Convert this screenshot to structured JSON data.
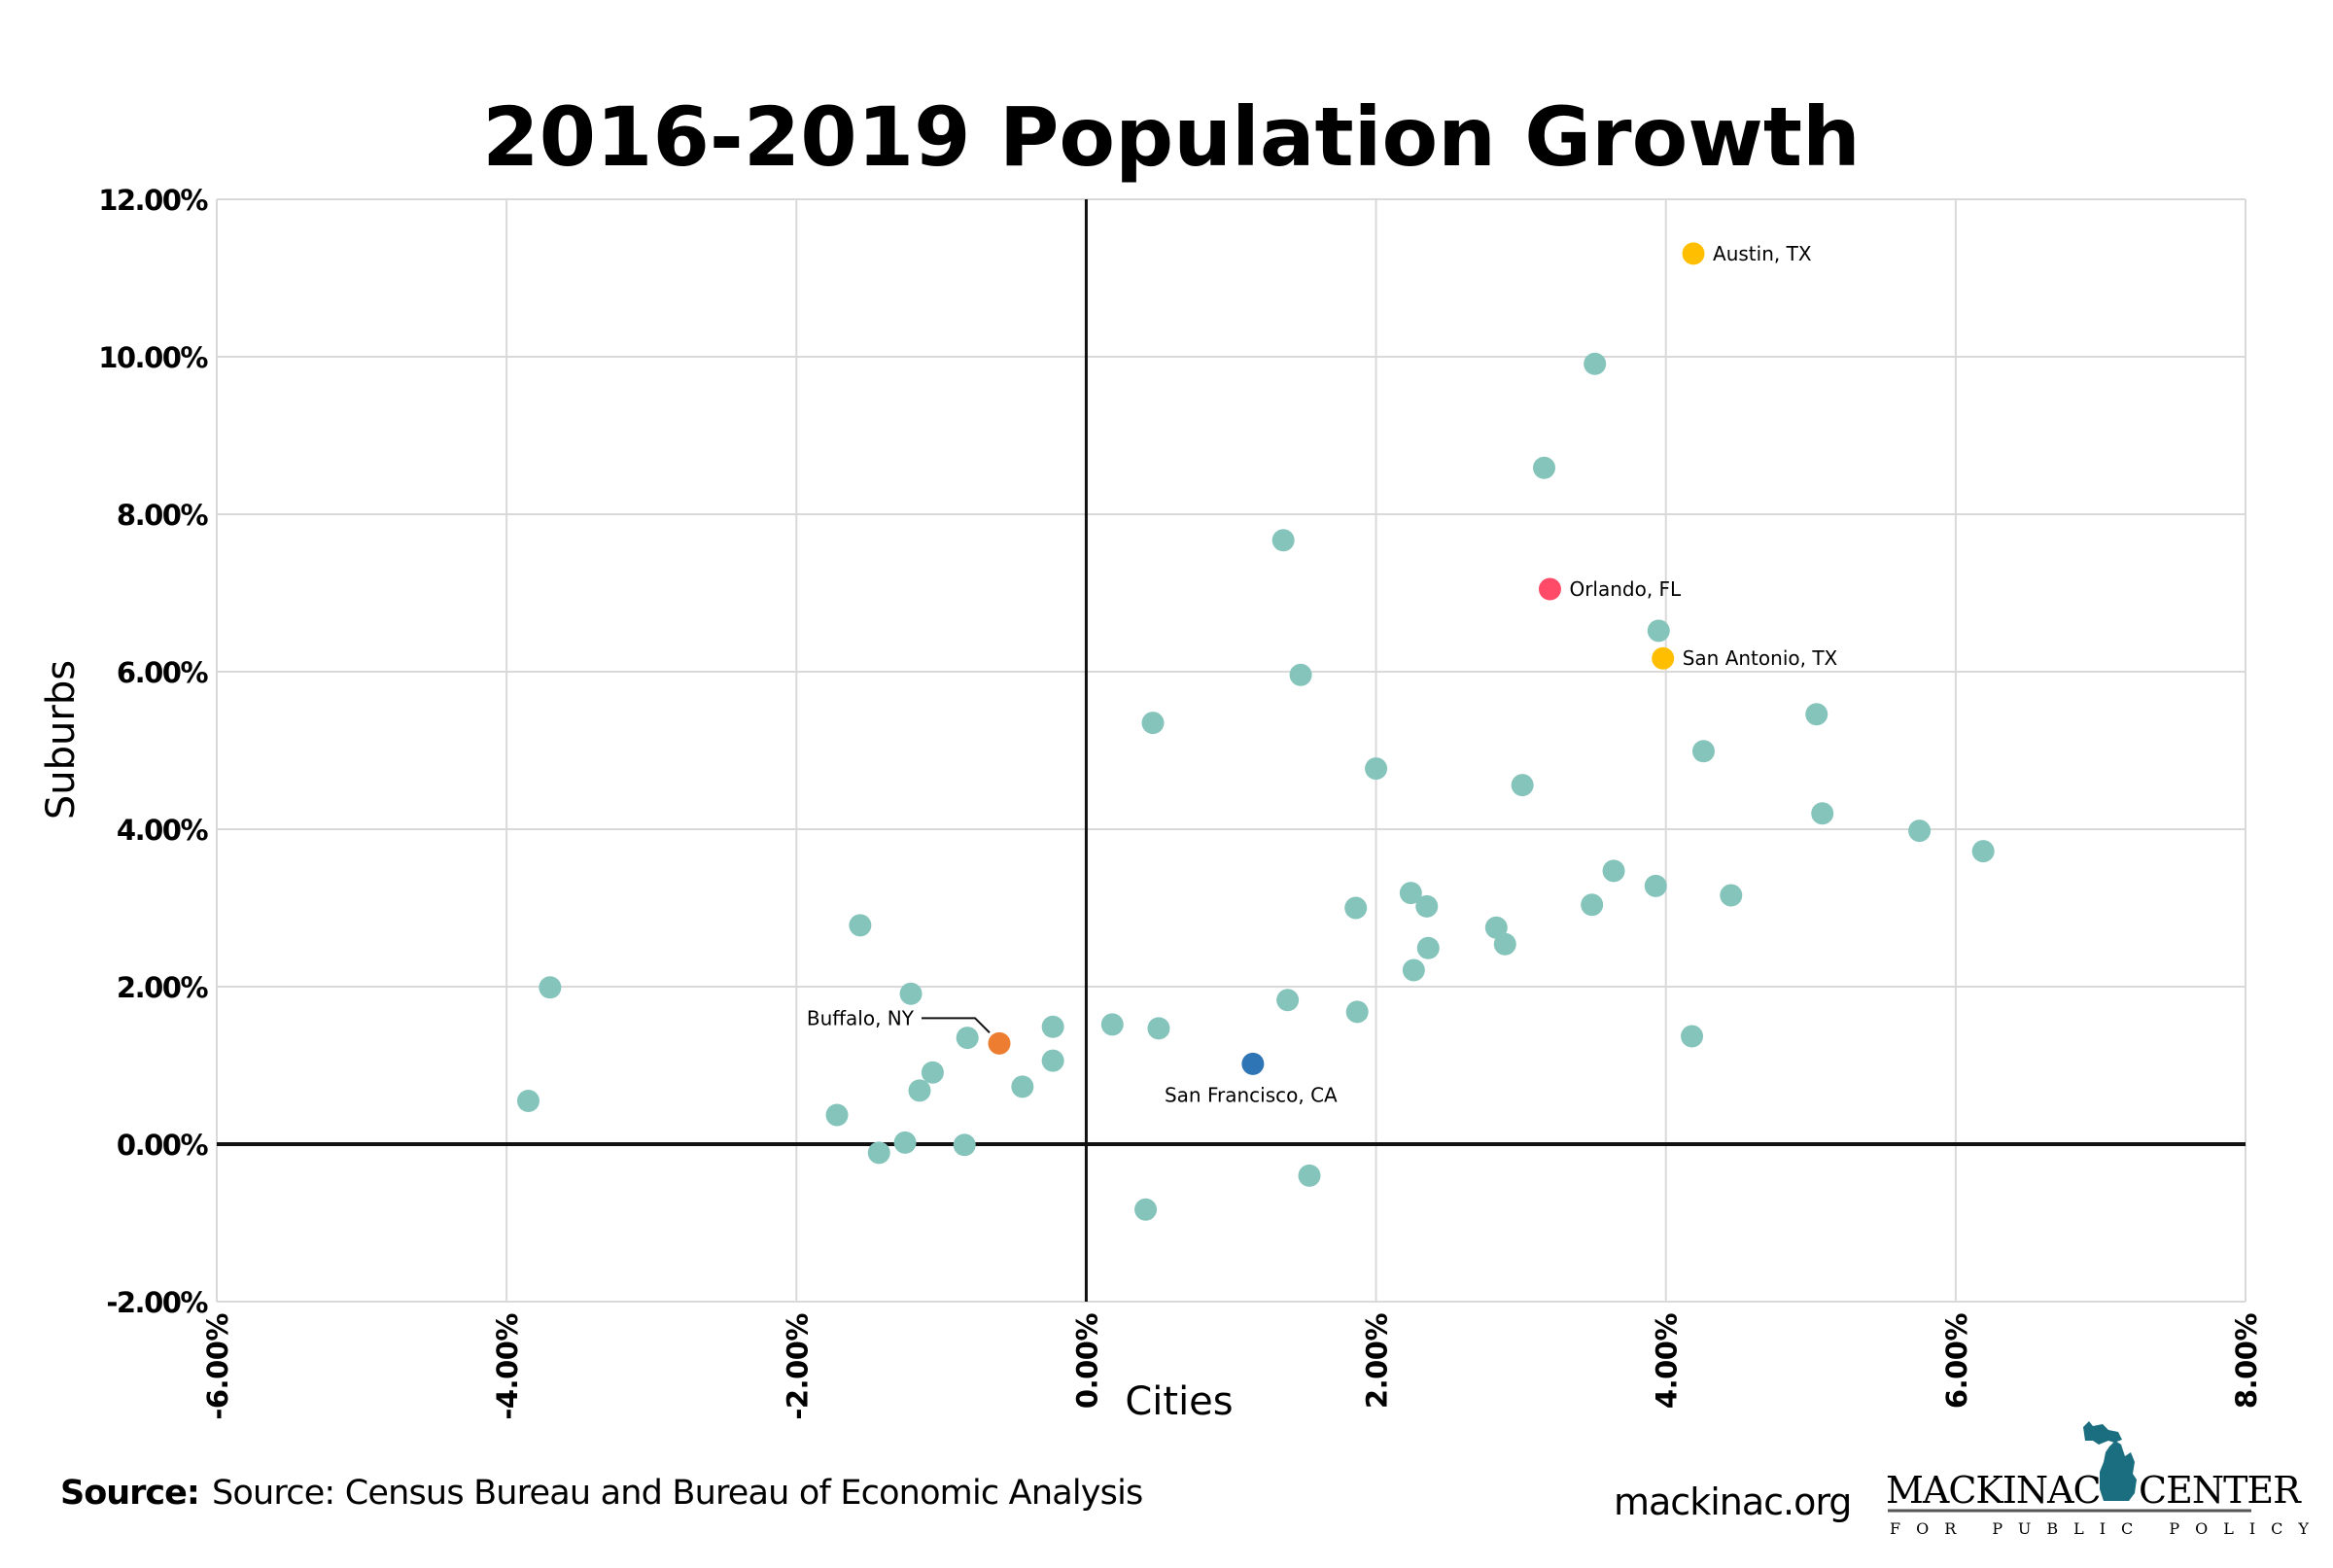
{
  "chart_data": {
    "type": "scatter",
    "title": "2016-2019 Population Growth",
    "xlabel": "Cities",
    "ylabel": "Suburbs",
    "xlim": [
      -6,
      8
    ],
    "ylim": [
      -2,
      12
    ],
    "x_ticks": [
      -6,
      -4,
      -2,
      0,
      2,
      4,
      6,
      8
    ],
    "y_ticks": [
      -2,
      0,
      2,
      4,
      6,
      8,
      10,
      12
    ],
    "x_tick_labels": [
      "-6.00%",
      "-4.00%",
      "-2.00%",
      "0.00%",
      "2.00%",
      "4.00%",
      "6.00%",
      "8.00%"
    ],
    "y_tick_labels": [
      "-2.00%",
      "0.00%",
      "2.00%",
      "4.00%",
      "6.00%",
      "8.00%",
      "10.00%",
      "12.00%"
    ],
    "unit": "percent",
    "grid": true,
    "default_color": "#85c4bb",
    "points": [
      {
        "x": 4.19,
        "y": 11.31,
        "label": "Austin, TX",
        "color": "#ffbf00",
        "label_pos": "right"
      },
      {
        "x": 3.2,
        "y": 7.05,
        "label": "Orlando, FL",
        "color": "#ff4a68",
        "label_pos": "right"
      },
      {
        "x": 3.98,
        "y": 6.17,
        "label": "San Antonio, TX",
        "color": "#ffbf00",
        "label_pos": "right"
      },
      {
        "x": 1.15,
        "y": 1.02,
        "label": "San Francisco, CA",
        "color": "#2e75b6",
        "label_pos": "below"
      },
      {
        "x": -0.6,
        "y": 1.28,
        "label": "Buffalo, NY",
        "color": "#ed7d31",
        "label_pos": "left-leader"
      },
      {
        "x": 3.51,
        "y": 9.91
      },
      {
        "x": 3.16,
        "y": 8.59
      },
      {
        "x": 1.36,
        "y": 7.67
      },
      {
        "x": 3.95,
        "y": 6.52
      },
      {
        "x": 1.48,
        "y": 5.96
      },
      {
        "x": 0.46,
        "y": 5.35
      },
      {
        "x": 5.04,
        "y": 5.46
      },
      {
        "x": 4.26,
        "y": 4.99
      },
      {
        "x": 2.0,
        "y": 4.77
      },
      {
        "x": 3.01,
        "y": 4.56
      },
      {
        "x": 5.08,
        "y": 4.2
      },
      {
        "x": 5.75,
        "y": 3.98
      },
      {
        "x": 6.19,
        "y": 3.72
      },
      {
        "x": 3.64,
        "y": 3.47
      },
      {
        "x": 3.93,
        "y": 3.28
      },
      {
        "x": 2.24,
        "y": 3.19
      },
      {
        "x": 4.45,
        "y": 3.16
      },
      {
        "x": 3.49,
        "y": 3.04
      },
      {
        "x": 2.35,
        "y": 3.02
      },
      {
        "x": 1.86,
        "y": 3.0
      },
      {
        "x": 2.83,
        "y": 2.75
      },
      {
        "x": 2.89,
        "y": 2.54
      },
      {
        "x": 2.36,
        "y": 2.49
      },
      {
        "x": 2.26,
        "y": 2.21
      },
      {
        "x": 1.39,
        "y": 1.83
      },
      {
        "x": 1.87,
        "y": 1.68
      },
      {
        "x": 4.18,
        "y": 1.37
      },
      {
        "x": 0.18,
        "y": 1.52
      },
      {
        "x": 0.5,
        "y": 1.47
      },
      {
        "x": -0.23,
        "y": 1.49
      },
      {
        "x": -0.23,
        "y": 1.06
      },
      {
        "x": -0.44,
        "y": 0.73
      },
      {
        "x": -0.82,
        "y": 1.35
      },
      {
        "x": -1.21,
        "y": 1.91
      },
      {
        "x": -1.56,
        "y": 2.78
      },
      {
        "x": -1.06,
        "y": 0.91
      },
      {
        "x": -1.15,
        "y": 0.68
      },
      {
        "x": -1.72,
        "y": 0.37
      },
      {
        "x": -1.25,
        "y": 0.02
      },
      {
        "x": -1.43,
        "y": -0.11
      },
      {
        "x": -0.84,
        "y": -0.01
      },
      {
        "x": -3.7,
        "y": 1.99
      },
      {
        "x": -3.85,
        "y": 0.55
      },
      {
        "x": 0.41,
        "y": -0.83
      },
      {
        "x": 1.54,
        "y": -0.4
      }
    ]
  },
  "footer": {
    "source_label": "Source:",
    "source_text": "Source: Census Bureau and Bureau of Economic Analysis",
    "website": "mackinac.org",
    "logo_main_left": "MACKINAC",
    "logo_main_right": "CENTER",
    "logo_sub": "FOR PUBLIC POLICY",
    "logo_color": "#1b6e7f"
  }
}
